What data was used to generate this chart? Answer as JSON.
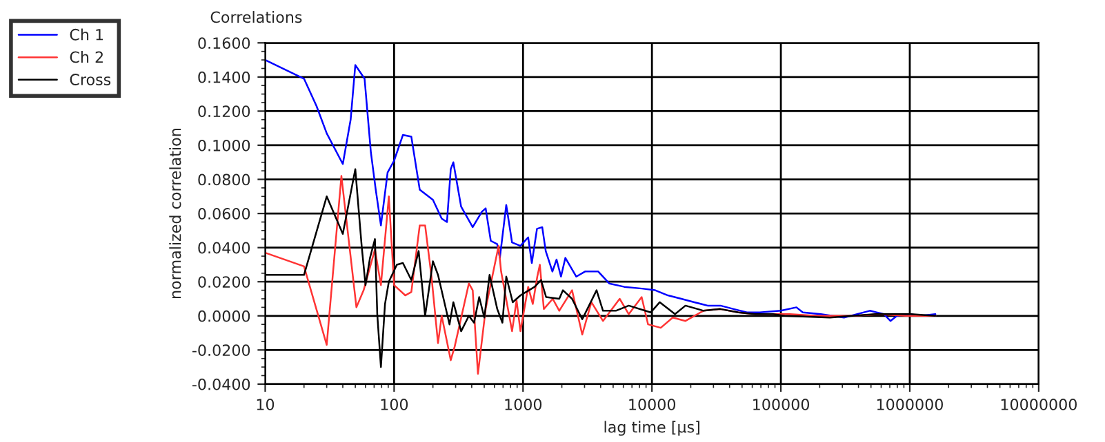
{
  "chart_data": {
    "type": "line",
    "title": "Correlations",
    "xlabel": "lag time [µs]",
    "ylabel": "normalized correlation",
    "log": "x",
    "grid": true,
    "legend": "top left",
    "marker": "none",
    "line_style": "solid",
    "xlim": [
      10,
      10000000
    ],
    "xticks": [
      10,
      100,
      1000,
      10000,
      100000,
      1000000,
      10000000
    ],
    "ylim": [
      -0.04,
      0.16
    ],
    "yticks": [
      {
        "value": -0.04,
        "label": "-0.0400"
      },
      {
        "value": -0.02,
        "label": "-0.0200"
      },
      {
        "value": 0,
        "label": "0.0000"
      },
      {
        "value": 0.02,
        "label": "0.0200"
      },
      {
        "value": 0.04,
        "label": "0.0400"
      },
      {
        "value": 0.06,
        "label": "0.0600"
      },
      {
        "value": 0.08,
        "label": "0.0800"
      },
      {
        "value": 0.1,
        "label": "0.1000"
      },
      {
        "value": 0.12,
        "label": "0.1200"
      },
      {
        "value": 0.14,
        "label": "0.1400"
      },
      {
        "value": 0.16,
        "label": "0.1600"
      }
    ],
    "series": [
      {
        "name": "Ch 1",
        "color": "#0000ff",
        "x": [
          10,
          20,
          25,
          30,
          40,
          46,
          50,
          59,
          66,
          72,
          79,
          89,
          100,
          117,
          136,
          158,
          200,
          234,
          257,
          275,
          288,
          331,
          407,
          479,
          513,
          562,
          631,
          661,
          741,
          822,
          955,
          1096,
          1170,
          1283,
          1409,
          1500,
          1690,
          1820,
          1970,
          2130,
          2590,
          3030,
          3830,
          4660,
          6110,
          8360,
          10600,
          13300,
          16900,
          21300,
          27000,
          34000,
          43000,
          54500,
          68700,
          100000,
          132000,
          148000,
          204000,
          309000,
          490000,
          631000,
          708000,
          794000,
          1000000,
          1200000,
          1580000
        ],
        "values": [
          0.15,
          0.139,
          0.123,
          0.107,
          0.089,
          0.115,
          0.147,
          0.139,
          0.096,
          0.074,
          0.053,
          0.084,
          0.091,
          0.106,
          0.105,
          0.074,
          0.068,
          0.057,
          0.055,
          0.086,
          0.09,
          0.064,
          0.052,
          0.061,
          0.063,
          0.044,
          0.042,
          0.034,
          0.065,
          0.043,
          0.041,
          0.046,
          0.031,
          0.051,
          0.052,
          0.038,
          0.026,
          0.033,
          0.023,
          0.034,
          0.023,
          0.026,
          0.026,
          0.019,
          0.017,
          0.016,
          0.015,
          0.012,
          0.01,
          0.008,
          0.006,
          0.006,
          0.004,
          0.002,
          0.002,
          0.003,
          0.005,
          0.002,
          0.001,
          -0.001,
          0.003,
          0.001,
          -0.003,
          0.0,
          0.001,
          0.0,
          0.001
        ]
      },
      {
        "name": "Ch 2",
        "color": "#ff3333",
        "x": [
          10,
          20,
          30,
          39,
          51,
          58,
          71,
          79,
          91,
          100,
          122,
          136,
          158,
          174,
          195,
          219,
          234,
          275,
          295,
          380,
          407,
          447,
          513,
          646,
          676,
          822,
          891,
          955,
          1096,
          1190,
          1290,
          1350,
          1450,
          1700,
          1910,
          2400,
          2880,
          3390,
          4170,
          5620,
          6610,
          8320,
          9330,
          11700,
          14500,
          18200,
          25100,
          33900,
          46800,
          63100,
          87100,
          117000,
          191000,
          363000,
          575000,
          933000,
          1580000
        ],
        "values": [
          0.037,
          0.029,
          -0.017,
          0.082,
          0.005,
          0.015,
          0.039,
          0.018,
          0.07,
          0.018,
          0.012,
          0.014,
          0.053,
          0.053,
          0.023,
          -0.016,
          0.0,
          -0.026,
          -0.018,
          0.019,
          0.015,
          -0.034,
          0.004,
          0.041,
          0.026,
          -0.009,
          0.009,
          -0.009,
          0.017,
          0.007,
          0.023,
          0.03,
          0.004,
          0.01,
          0.003,
          0.015,
          -0.011,
          0.008,
          -0.003,
          0.01,
          0.001,
          0.011,
          -0.005,
          -0.007,
          -0.001,
          -0.003,
          0.003,
          0.004,
          0.002,
          0.001,
          0.001,
          0.001,
          0.0,
          0.0,
          0.001,
          0.0,
          0.0
        ]
      },
      {
        "name": "Cross",
        "color": "#000000",
        "x": [
          10,
          20,
          30,
          40,
          50,
          56,
          60,
          65,
          71,
          74,
          79,
          85,
          91,
          105,
          117,
          136,
          155,
          174,
          200,
          219,
          269,
          288,
          331,
          380,
          417,
          457,
          501,
          550,
          631,
          692,
          741,
          832,
          955,
          1230,
          1380,
          1510,
          1910,
          2040,
          2400,
          2880,
          3720,
          4170,
          5250,
          6610,
          9770,
          11500,
          15100,
          18200,
          25100,
          33900,
          46800,
          63100,
          87100,
          107000,
          240000,
          537000,
          1020000,
          1580000
        ],
        "values": [
          0.024,
          0.024,
          0.07,
          0.048,
          0.086,
          0.041,
          0.018,
          0.034,
          0.045,
          0.001,
          -0.03,
          0.007,
          0.02,
          0.03,
          0.031,
          0.021,
          0.038,
          0.0,
          0.032,
          0.024,
          -0.005,
          0.008,
          -0.009,
          0.0,
          -0.004,
          0.011,
          -0.001,
          0.024,
          0.004,
          -0.004,
          0.023,
          0.008,
          0.012,
          0.017,
          0.021,
          0.011,
          0.01,
          0.015,
          0.01,
          -0.002,
          0.015,
          0.003,
          0.003,
          0.006,
          0.002,
          0.008,
          0.001,
          0.006,
          0.003,
          0.004,
          0.002,
          0.001,
          0.001,
          0.0,
          -0.001,
          0.001,
          0.001,
          0.0
        ]
      }
    ]
  }
}
